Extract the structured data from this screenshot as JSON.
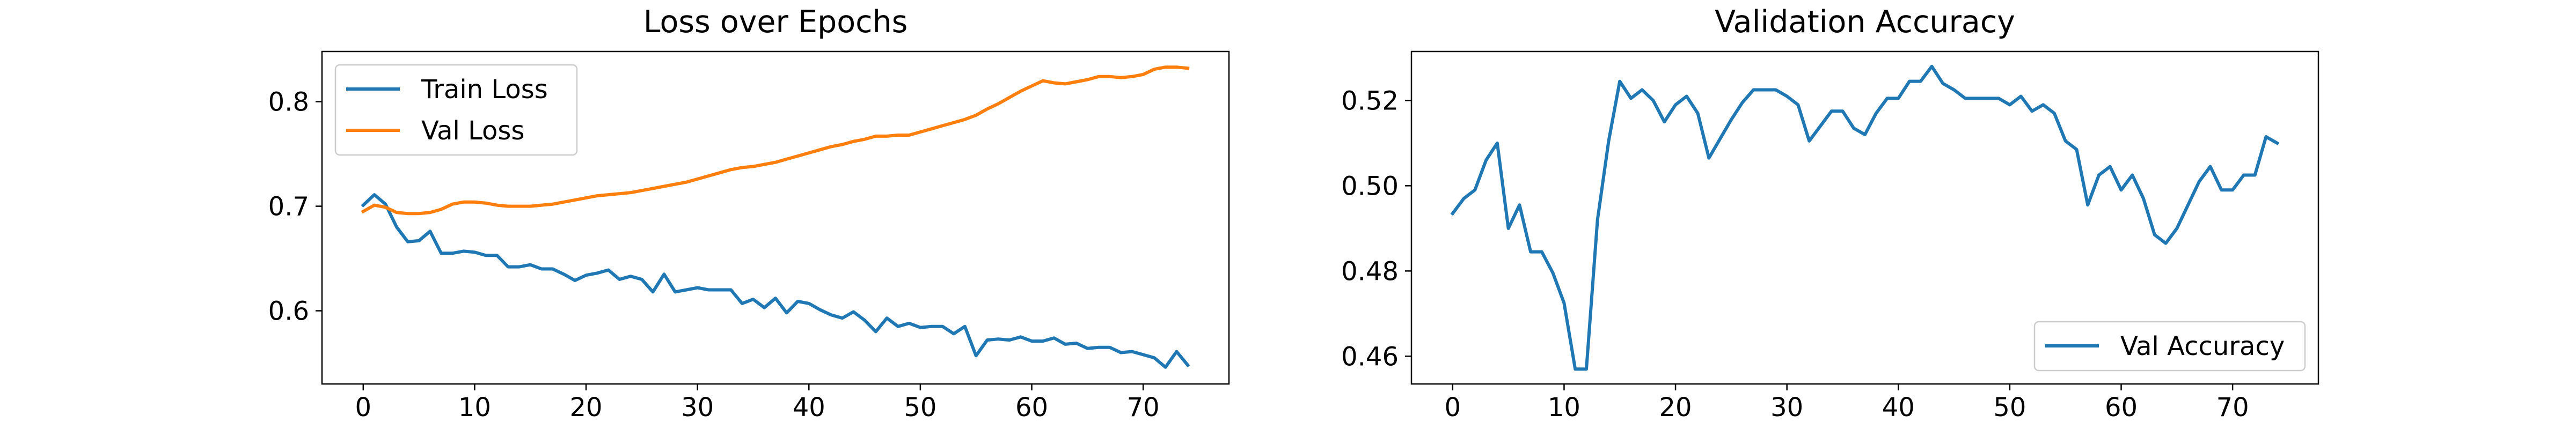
{
  "chart_data": [
    {
      "type": "line",
      "title": "Loss over Epochs",
      "xlabel": "",
      "ylabel": "",
      "xlim": [
        -3.7,
        77.7
      ],
      "ylim": [
        0.53,
        0.848
      ],
      "xticks": [
        0,
        10,
        20,
        30,
        40,
        50,
        60,
        70
      ],
      "yticks": [
        0.6,
        0.7,
        0.8
      ],
      "ytick_labels": [
        "0.6",
        "0.7",
        "0.8"
      ],
      "grid": false,
      "legend_position": "upper-left",
      "x": [
        0,
        1,
        2,
        3,
        4,
        5,
        6,
        7,
        8,
        9,
        10,
        11,
        12,
        13,
        14,
        15,
        16,
        17,
        18,
        19,
        20,
        21,
        22,
        23,
        24,
        25,
        26,
        27,
        28,
        29,
        30,
        31,
        32,
        33,
        34,
        35,
        36,
        37,
        38,
        39,
        40,
        41,
        42,
        43,
        44,
        45,
        46,
        47,
        48,
        49,
        50,
        51,
        52,
        53,
        54,
        55,
        56,
        57,
        58,
        59,
        60,
        61,
        62,
        63,
        64,
        65,
        66,
        67,
        68,
        69,
        70,
        71,
        72,
        73,
        74
      ],
      "series": [
        {
          "name": "Train Loss",
          "color": "#1f77b4",
          "values": [
            0.701,
            0.711,
            0.702,
            0.68,
            0.666,
            0.667,
            0.676,
            0.655,
            0.655,
            0.657,
            0.656,
            0.653,
            0.653,
            0.642,
            0.642,
            0.644,
            0.64,
            0.64,
            0.635,
            0.629,
            0.634,
            0.636,
            0.639,
            0.63,
            0.633,
            0.63,
            0.618,
            0.635,
            0.618,
            0.62,
            0.622,
            0.62,
            0.62,
            0.62,
            0.607,
            0.611,
            0.603,
            0.612,
            0.598,
            0.609,
            0.607,
            0.601,
            0.596,
            0.593,
            0.599,
            0.591,
            0.58,
            0.593,
            0.585,
            0.588,
            0.584,
            0.585,
            0.585,
            0.578,
            0.585,
            0.557,
            0.572,
            0.573,
            0.572,
            0.575,
            0.571,
            0.571,
            0.574,
            0.568,
            0.569,
            0.564,
            0.565,
            0.565,
            0.56,
            0.561,
            0.558,
            0.555,
            0.546,
            0.561,
            0.548
          ]
        },
        {
          "name": "Val Loss",
          "color": "#ff7f0e",
          "values": [
            0.695,
            0.701,
            0.699,
            0.694,
            0.693,
            0.693,
            0.694,
            0.697,
            0.702,
            0.704,
            0.704,
            0.703,
            0.701,
            0.7,
            0.7,
            0.7,
            0.701,
            0.702,
            0.704,
            0.706,
            0.708,
            0.71,
            0.711,
            0.712,
            0.713,
            0.715,
            0.717,
            0.719,
            0.721,
            0.723,
            0.726,
            0.729,
            0.732,
            0.735,
            0.737,
            0.738,
            0.74,
            0.742,
            0.745,
            0.748,
            0.751,
            0.754,
            0.757,
            0.759,
            0.762,
            0.764,
            0.767,
            0.767,
            0.768,
            0.768,
            0.771,
            0.774,
            0.777,
            0.78,
            0.783,
            0.787,
            0.793,
            0.798,
            0.804,
            0.81,
            0.815,
            0.82,
            0.818,
            0.817,
            0.819,
            0.821,
            0.824,
            0.824,
            0.823,
            0.824,
            0.826,
            0.831,
            0.833,
            0.833,
            0.832
          ]
        }
      ]
    },
    {
      "type": "line",
      "title": "Validation Accuracy",
      "xlabel": "",
      "ylabel": "",
      "xlim": [
        -3.7,
        77.7
      ],
      "ylim": [
        0.4535,
        0.5315
      ],
      "xticks": [
        0,
        10,
        20,
        30,
        40,
        50,
        60,
        70
      ],
      "yticks": [
        0.46,
        0.48,
        0.5,
        0.52
      ],
      "ytick_labels": [
        "0.46",
        "0.48",
        "0.50",
        "0.52"
      ],
      "grid": false,
      "legend_position": "lower-right",
      "x": [
        0,
        1,
        2,
        3,
        4,
        5,
        6,
        7,
        8,
        9,
        10,
        11,
        12,
        13,
        14,
        15,
        16,
        17,
        18,
        19,
        20,
        21,
        22,
        23,
        24,
        25,
        26,
        27,
        28,
        29,
        30,
        31,
        32,
        33,
        34,
        35,
        36,
        37,
        38,
        39,
        40,
        41,
        42,
        43,
        44,
        45,
        46,
        47,
        48,
        49,
        50,
        51,
        52,
        53,
        54,
        55,
        56,
        57,
        58,
        59,
        60,
        61,
        62,
        63,
        64,
        65,
        66,
        67,
        68,
        69,
        70,
        71,
        72,
        73,
        74
      ],
      "series": [
        {
          "name": "Val Accuracy",
          "color": "#1f77b4",
          "values": [
            0.4935,
            0.497,
            0.499,
            0.506,
            0.51,
            0.49,
            0.4955,
            0.4845,
            0.4845,
            0.4795,
            0.4725,
            0.457,
            0.457,
            0.492,
            0.5105,
            0.5245,
            0.5205,
            0.5225,
            0.52,
            0.515,
            0.519,
            0.521,
            0.517,
            0.5065,
            0.511,
            0.5155,
            0.5195,
            0.5225,
            0.5225,
            0.5225,
            0.521,
            0.519,
            0.5105,
            0.514,
            0.5175,
            0.5175,
            0.5135,
            0.512,
            0.517,
            0.5205,
            0.5205,
            0.5245,
            0.5245,
            0.528,
            0.524,
            0.5225,
            0.5205,
            0.5205,
            0.5205,
            0.5205,
            0.519,
            0.521,
            0.5175,
            0.519,
            0.517,
            0.5105,
            0.5085,
            0.4955,
            0.5025,
            0.5045,
            0.499,
            0.5025,
            0.497,
            0.4885,
            0.4865,
            0.49,
            0.4955,
            0.501,
            0.5045,
            0.499,
            0.499,
            0.5025,
            0.5025,
            0.5115,
            0.51
          ]
        }
      ]
    }
  ]
}
